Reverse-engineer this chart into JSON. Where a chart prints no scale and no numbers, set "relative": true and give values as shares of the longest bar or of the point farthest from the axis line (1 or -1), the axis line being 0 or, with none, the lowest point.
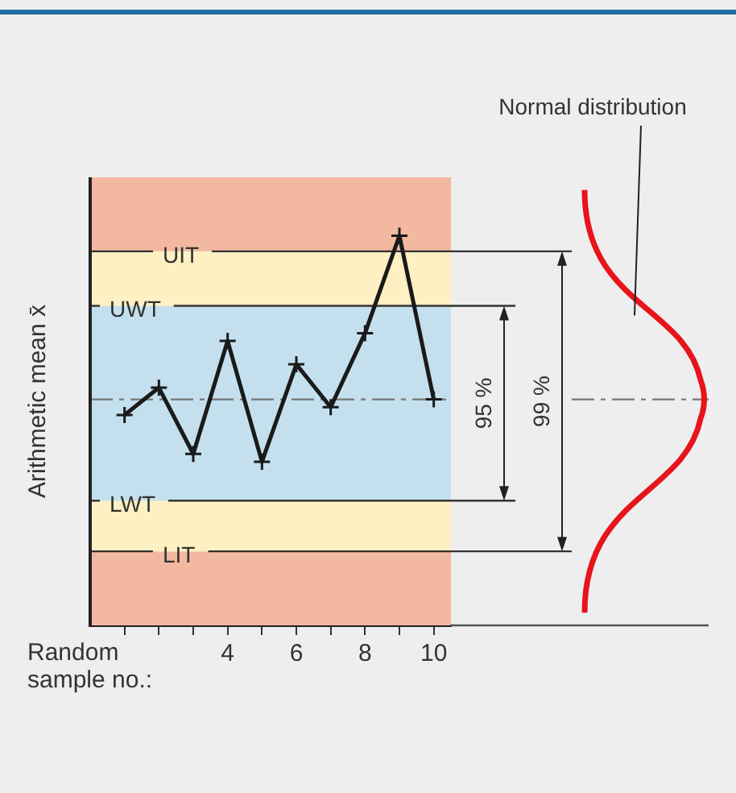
{
  "chart_data": {
    "type": "line",
    "xlabel": "Random sample no.:",
    "ylabel": "Arithmetic mean x̄",
    "relative": true,
    "x": [
      1,
      2,
      3,
      4,
      5,
      6,
      7,
      8,
      9,
      10
    ],
    "xlim": [
      0,
      10.5
    ],
    "xticks": [
      {
        "value": 1,
        "label": null
      },
      {
        "value": 2,
        "label": null
      },
      {
        "value": 3,
        "label": null
      },
      4,
      {
        "value": 5,
        "label": null
      },
      6,
      {
        "value": 7,
        "label": null
      },
      8,
      {
        "value": 9,
        "label": null
      },
      10
    ],
    "series": [
      {
        "color": "#1a1a1a",
        "values": [
          0.54,
          0.61,
          0.44,
          0.73,
          0.42,
          0.67,
          0.56,
          0.75,
          1,
          0.58
        ]
      }
    ],
    "marker": "cross",
    "grid": false,
    "legend": false,
    "bands": [
      {
        "axis": "y",
        "from": 0,
        "to": 0.19,
        "color": "#f2b8a0"
      },
      {
        "axis": "y",
        "from": 0.19,
        "to": 0.32,
        "color": "#fdf0c2"
      },
      {
        "axis": "y",
        "from": 0.32,
        "to": 0.82,
        "color": "#c4e0ee"
      },
      {
        "axis": "y",
        "from": 0.82,
        "to": 0.96,
        "color": "#fdf0c2"
      },
      {
        "axis": "y",
        "from": 0.96,
        "to": 1.15,
        "color": "#f2b8a0"
      }
    ],
    "ref_lines": [
      {
        "axis": "y",
        "value": 0.96,
        "label": "UIT",
        "color": "#333333",
        "line_style": "solid"
      },
      {
        "axis": "y",
        "value": 0.82,
        "label": "UWT",
        "color": "#333333",
        "line_style": "solid"
      },
      {
        "axis": "y",
        "value": 0.58,
        "color": "#777777",
        "line_style": "dashed"
      },
      {
        "axis": "y",
        "value": 0.32,
        "label": "LWT",
        "color": "#333333",
        "line_style": "solid"
      },
      {
        "axis": "y",
        "value": 0.19,
        "label": "LIT",
        "color": "#333333",
        "line_style": "solid"
      }
    ],
    "annotations": [
      "95 %",
      "99 %",
      "Normal distribution"
    ]
  }
}
